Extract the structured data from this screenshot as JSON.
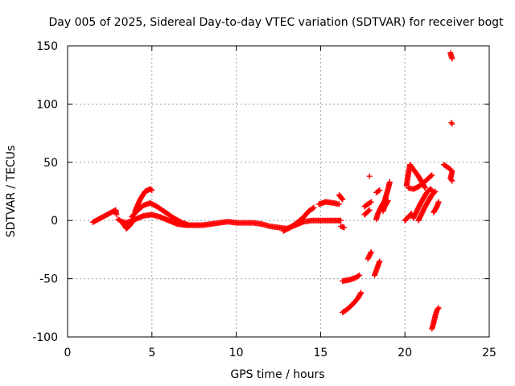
{
  "chart_data": {
    "type": "scatter",
    "title": "Day 005 of 2025, Sidereal Day-to-day VTEC variation (SDTVAR) for receiver bogt",
    "xlabel": "GPS time / hours",
    "ylabel": "SDTVAR / TECUs",
    "xlim": [
      0,
      25
    ],
    "ylim": [
      -100,
      150
    ],
    "xticks": [
      0,
      5,
      10,
      15,
      20,
      25
    ],
    "yticks": [
      -100,
      -50,
      0,
      50,
      100,
      150
    ],
    "grid": true,
    "marker": "+",
    "color": "#ff0000",
    "tracks": [
      {
        "name": "isolated-early",
        "points": [
          [
            1.5,
            -1.5
          ],
          [
            2.85,
            9
          ],
          [
            2.9,
            5
          ]
        ]
      },
      {
        "name": "main-flat-band",
        "points": [
          [
            3.0,
            1
          ],
          [
            3.2,
            -1
          ],
          [
            3.5,
            -2
          ],
          [
            4.0,
            1
          ],
          [
            4.5,
            4
          ],
          [
            5.0,
            5
          ],
          [
            5.5,
            3
          ],
          [
            6.0,
            0
          ],
          [
            6.5,
            -3
          ],
          [
            7.0,
            -4
          ],
          [
            7.5,
            -4
          ],
          [
            8.0,
            -4
          ],
          [
            8.5,
            -3
          ],
          [
            9.0,
            -2
          ],
          [
            9.5,
            -1
          ],
          [
            10.0,
            -2
          ],
          [
            10.5,
            -2
          ],
          [
            11.0,
            -2
          ],
          [
            11.5,
            -3
          ],
          [
            12.0,
            -5
          ],
          [
            12.5,
            -6
          ],
          [
            13.0,
            -7
          ],
          [
            13.5,
            -4
          ],
          [
            14.0,
            -1
          ],
          [
            14.5,
            0
          ],
          [
            15.0,
            0
          ],
          [
            15.5,
            0
          ],
          [
            16.0,
            0
          ],
          [
            16.2,
            0
          ]
        ]
      },
      {
        "name": "hump-low-left",
        "points": [
          [
            3.3,
            -3
          ],
          [
            3.5,
            -7
          ],
          [
            3.7,
            -4
          ],
          [
            3.9,
            0
          ]
        ]
      },
      {
        "name": "hump-mid",
        "points": [
          [
            3.8,
            3
          ],
          [
            4.1,
            8
          ],
          [
            4.5,
            13
          ],
          [
            4.9,
            15
          ],
          [
            5.3,
            12
          ],
          [
            5.8,
            7
          ],
          [
            6.3,
            2
          ],
          [
            6.8,
            -2
          ],
          [
            7.2,
            -4
          ]
        ]
      },
      {
        "name": "hump-high",
        "points": [
          [
            4.0,
            8
          ],
          [
            4.3,
            18
          ],
          [
            4.6,
            25
          ],
          [
            4.9,
            27
          ],
          [
            5.0,
            26
          ]
        ]
      },
      {
        "name": "rise-near-13",
        "points": [
          [
            12.8,
            -9
          ],
          [
            13.2,
            -6
          ],
          [
            13.6,
            -2
          ],
          [
            14.0,
            3
          ],
          [
            14.3,
            8
          ],
          [
            14.6,
            11
          ]
        ]
      },
      {
        "name": "segment-15-16",
        "points": [
          [
            14.9,
            14
          ],
          [
            15.3,
            16
          ],
          [
            15.8,
            15
          ],
          [
            16.1,
            14
          ]
        ]
      },
      {
        "name": "segment-16",
        "points": [
          [
            16.1,
            22
          ],
          [
            16.3,
            18
          ]
        ]
      },
      {
        "name": "dot-16-neg",
        "points": [
          [
            16.4,
            -6
          ],
          [
            16.2,
            -5
          ]
        ]
      },
      {
        "name": "negative-50-track",
        "points": [
          [
            16.3,
            -52
          ],
          [
            16.7,
            -51
          ],
          [
            17.1,
            -49
          ],
          [
            17.3,
            -47
          ]
        ]
      },
      {
        "name": "negative-80-track",
        "points": [
          [
            16.3,
            -79
          ],
          [
            16.6,
            -76
          ],
          [
            16.9,
            -72
          ],
          [
            17.2,
            -67
          ],
          [
            17.4,
            -62
          ]
        ]
      },
      {
        "name": "cluster-17.5",
        "points": [
          [
            17.6,
            12
          ],
          [
            17.8,
            14
          ],
          [
            18.0,
            16
          ]
        ]
      },
      {
        "name": "track-17.6",
        "points": [
          [
            17.6,
            5
          ],
          [
            17.75,
            7
          ],
          [
            17.9,
            9
          ]
        ]
      },
      {
        "name": "dot-18",
        "points": [
          [
            17.9,
            38
          ]
        ]
      },
      {
        "name": "dot-18.3",
        "points": [
          [
            18.3,
            24
          ],
          [
            18.5,
            26
          ]
        ]
      },
      {
        "name": "track-18.6",
        "points": [
          [
            18.3,
            1
          ],
          [
            18.4,
            6
          ],
          [
            18.6,
            12
          ],
          [
            18.8,
            17
          ],
          [
            18.9,
            22
          ],
          [
            19.0,
            27
          ],
          [
            19.1,
            33
          ]
        ]
      },
      {
        "name": "track-18.7",
        "points": [
          [
            18.7,
            8
          ],
          [
            18.8,
            12
          ],
          [
            19.0,
            17
          ]
        ]
      },
      {
        "name": "neg-30-track",
        "points": [
          [
            17.8,
            -33
          ],
          [
            17.9,
            -30
          ],
          [
            18.0,
            -27
          ]
        ]
      },
      {
        "name": "neg-40-track",
        "points": [
          [
            18.2,
            -47
          ],
          [
            18.3,
            -43
          ],
          [
            18.4,
            -39
          ],
          [
            18.5,
            -35
          ]
        ]
      },
      {
        "name": "track-20.5",
        "points": [
          [
            20.1,
            30
          ],
          [
            20.2,
            40
          ],
          [
            20.3,
            48
          ],
          [
            20.5,
            44
          ],
          [
            20.8,
            38
          ],
          [
            21.0,
            33
          ],
          [
            21.2,
            28
          ]
        ]
      },
      {
        "name": "track-20.3",
        "points": [
          [
            20.2,
            28
          ],
          [
            20.5,
            27
          ],
          [
            20.8,
            29
          ],
          [
            21.0,
            31
          ],
          [
            21.3,
            35
          ],
          [
            21.6,
            39
          ]
        ]
      },
      {
        "name": "track-20.6",
        "points": [
          [
            20.5,
            2
          ],
          [
            20.7,
            8
          ],
          [
            20.9,
            14
          ],
          [
            21.1,
            19
          ],
          [
            21.3,
            24
          ],
          [
            21.5,
            27
          ],
          [
            21.6,
            26
          ]
        ]
      },
      {
        "name": "track-20.8",
        "points": [
          [
            20.8,
            0
          ],
          [
            21.0,
            6
          ],
          [
            21.2,
            12
          ],
          [
            21.4,
            17
          ],
          [
            21.6,
            22
          ],
          [
            21.8,
            25
          ]
        ]
      },
      {
        "name": "track-20.1",
        "points": [
          [
            20.0,
            0
          ],
          [
            20.2,
            3
          ],
          [
            20.4,
            6
          ]
        ]
      },
      {
        "name": "track-21.8",
        "points": [
          [
            21.7,
            7
          ],
          [
            21.9,
            12
          ],
          [
            22.0,
            16
          ]
        ]
      },
      {
        "name": "neg-85-track",
        "points": [
          [
            21.6,
            -93
          ],
          [
            21.7,
            -88
          ],
          [
            21.8,
            -82
          ],
          [
            21.9,
            -77
          ],
          [
            22.0,
            -75
          ]
        ]
      },
      {
        "name": "track-22.5",
        "points": [
          [
            22.3,
            48
          ],
          [
            22.5,
            46
          ],
          [
            22.7,
            44
          ],
          [
            22.8,
            42
          ],
          [
            22.7,
            36
          ],
          [
            22.8,
            34
          ]
        ]
      },
      {
        "name": "outlier-83",
        "points": [
          [
            22.75,
            84
          ],
          [
            22.8,
            83
          ]
        ]
      },
      {
        "name": "outlier-140",
        "points": [
          [
            22.7,
            144
          ],
          [
            22.75,
            141
          ],
          [
            22.8,
            139
          ]
        ]
      }
    ]
  }
}
